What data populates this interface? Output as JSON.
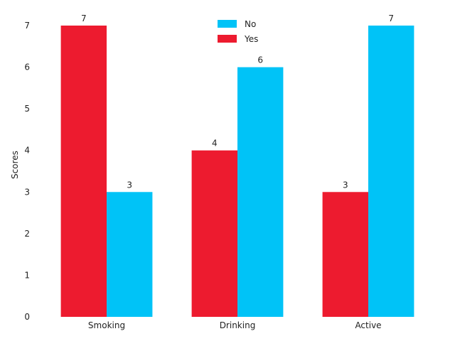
{
  "chart_data": {
    "type": "bar",
    "categories": [
      "Smoking",
      "Drinking",
      "Active"
    ],
    "series": [
      {
        "name": "Yes",
        "values": [
          7,
          4,
          3
        ],
        "color": "#ed1b2f"
      },
      {
        "name": "No",
        "values": [
          3,
          6,
          7
        ],
        "color": "#00c3f7"
      }
    ],
    "ylabel": "Scores",
    "xlabel": "",
    "title": "",
    "ylim": [
      0,
      7
    ],
    "yticks": [
      0,
      1,
      2,
      3,
      4,
      5,
      6,
      7
    ],
    "grid": false,
    "legend_position": "top-center",
    "legend_order": [
      "No",
      "Yes"
    ],
    "data_labels": true
  }
}
